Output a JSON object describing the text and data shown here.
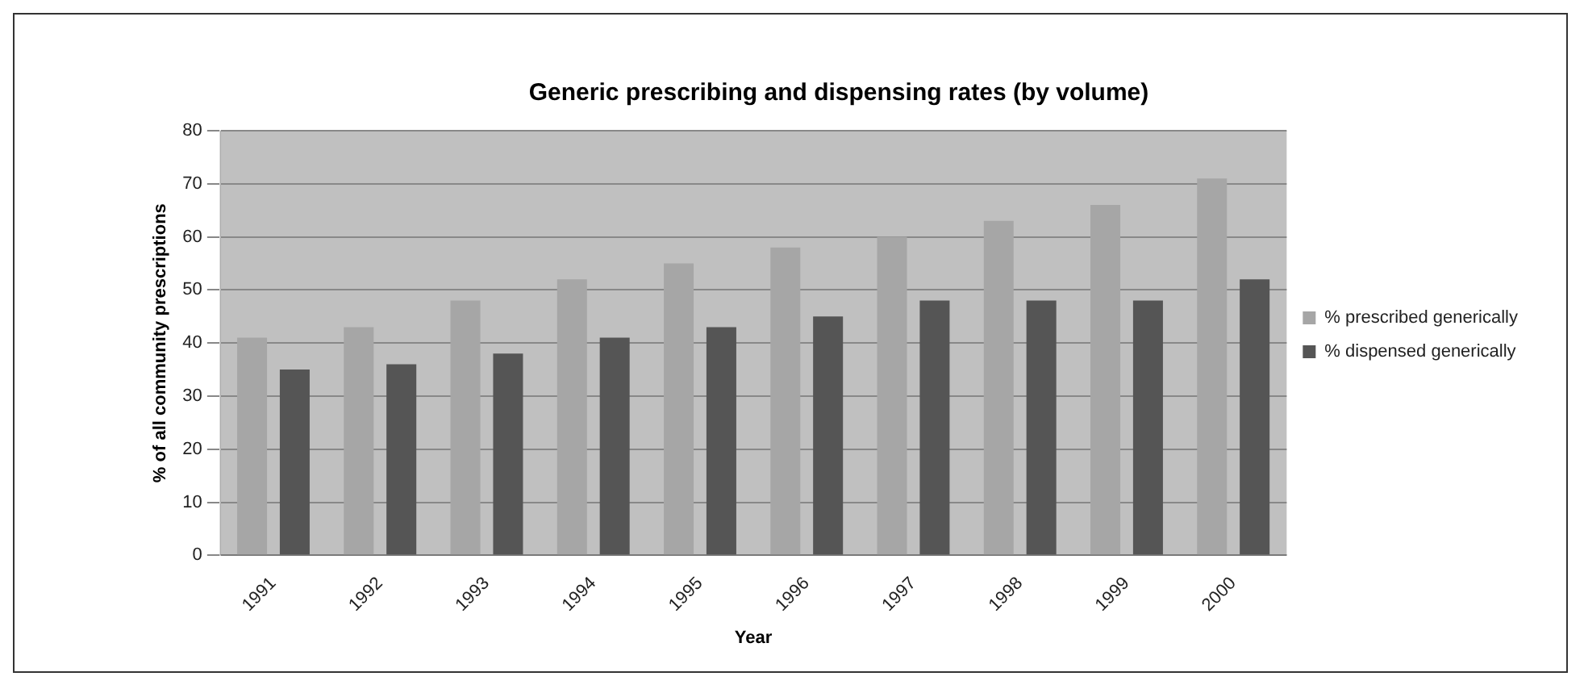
{
  "chart_data": {
    "type": "bar",
    "title": "Generic prescribing and dispensing rates (by volume)",
    "xlabel": "Year",
    "ylabel": "% of all community prescriptions",
    "categories": [
      "1991",
      "1992",
      "1993",
      "1994",
      "1995",
      "1996",
      "1997",
      "1998",
      "1999",
      "2000"
    ],
    "series": [
      {
        "name": "% prescribed generically",
        "color": "#a6a6a6",
        "values": [
          41,
          43,
          48,
          52,
          55,
          58,
          60,
          63,
          66,
          71
        ]
      },
      {
        "name": "% dispensed generically",
        "color": "#555555",
        "values": [
          35,
          36,
          38,
          41,
          43,
          45,
          48,
          48,
          48,
          52
        ]
      }
    ],
    "ylim": [
      0,
      80
    ],
    "yticks": [
      0,
      10,
      20,
      30,
      40,
      50,
      60,
      70,
      80
    ],
    "grid": "y",
    "legend": "right"
  }
}
